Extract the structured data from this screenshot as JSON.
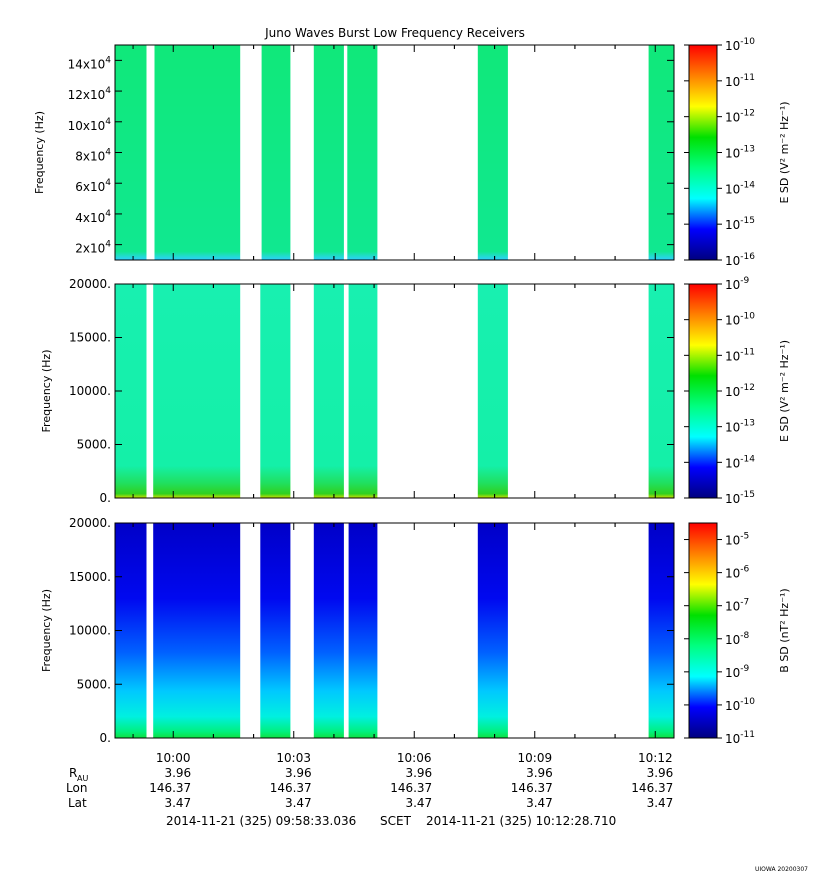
{
  "title": "Juno Waves Burst Low Frequency Receivers",
  "footer": {
    "start_time": "2014-11-21 (325) 09:58:33.036",
    "frame": "SCET",
    "end_time": "2014-11-21 (325) 10:12:28.710",
    "credit": "UIOWA 20200307"
  },
  "ephemeris": {
    "row_labels": [
      "R",
      "Lon",
      "Lat"
    ],
    "r_subscript": "AU",
    "rows": [
      {
        "key": "r",
        "values": [
          "3.96",
          "3.96",
          "3.96",
          "3.96",
          "3.96"
        ]
      },
      {
        "key": "lon",
        "values": [
          "146.37",
          "146.37",
          "146.37",
          "146.37",
          "146.37"
        ]
      },
      {
        "key": "lat",
        "values": [
          "3.47",
          "3.47",
          "3.47",
          "3.47",
          "3.47"
        ]
      }
    ]
  },
  "colors": {
    "colormap": [
      "#000080",
      "#0000ff",
      "#00ffff",
      "#00ff80",
      "#00e000",
      "#ffff00",
      "#ff8000",
      "#ff0000"
    ]
  },
  "chart_data": [
    {
      "type": "heatmap",
      "panel": "E-field high band",
      "ylabel": "Frequency (Hz)",
      "y_range": [
        10000,
        150000
      ],
      "y_ticks": [
        {
          "value": 20000,
          "mant": "2x10",
          "exp": "4"
        },
        {
          "value": 40000,
          "mant": "4x10",
          "exp": "4"
        },
        {
          "value": 60000,
          "mant": "6x10",
          "exp": "4"
        },
        {
          "value": 80000,
          "mant": "8x10",
          "exp": "4"
        },
        {
          "value": 100000,
          "mant": "10x10",
          "exp": "4"
        },
        {
          "value": 120000,
          "mant": "12x10",
          "exp": "4"
        },
        {
          "value": 140000,
          "mant": "14x10",
          "exp": "4"
        }
      ],
      "colorbar_label": "E SD (V² m⁻² Hz⁻¹)",
      "colorbar_range_exp": [
        -16,
        -10
      ],
      "colorbar_ticks": [
        "-16",
        "-15",
        "-14",
        "-13",
        "-12",
        "-11",
        "-10"
      ],
      "bursts": [
        [
          "09:58:33",
          "09:59:20"
        ],
        [
          "09:59:32",
          "10:01:40"
        ],
        [
          "10:02:12",
          "10:02:55"
        ],
        [
          "10:03:30",
          "10:04:15"
        ],
        [
          "10:04:20",
          "10:05:05"
        ],
        [
          "10:07:35",
          "10:08:20"
        ],
        [
          "10:11:50",
          "10:12:28"
        ]
      ]
    },
    {
      "type": "heatmap",
      "panel": "E-field low band",
      "ylabel": "Frequency (Hz)",
      "y_range": [
        0,
        20000
      ],
      "y_ticks": [
        {
          "value": 0,
          "label": "0."
        },
        {
          "value": 5000,
          "label": "5000."
        },
        {
          "value": 10000,
          "label": "10000."
        },
        {
          "value": 15000,
          "label": "15000."
        },
        {
          "value": 20000,
          "label": "20000."
        }
      ],
      "colorbar_label": "E SD (V² m⁻² Hz⁻¹)",
      "colorbar_range_exp": [
        -15,
        -9
      ],
      "colorbar_ticks": [
        "-15",
        "-14",
        "-13",
        "-12",
        "-11",
        "-10",
        "-9"
      ],
      "bursts": [
        [
          "09:58:33",
          "09:59:20"
        ],
        [
          "09:59:30",
          "10:01:40"
        ],
        [
          "10:02:10",
          "10:02:55"
        ],
        [
          "10:03:30",
          "10:04:15"
        ],
        [
          "10:04:22",
          "10:05:05"
        ],
        [
          "10:07:35",
          "10:08:20"
        ],
        [
          "10:11:50",
          "10:12:28"
        ]
      ]
    },
    {
      "type": "heatmap",
      "panel": "B-field",
      "ylabel": "Frequency (Hz)",
      "y_range": [
        0,
        20000
      ],
      "y_ticks": [
        {
          "value": 0,
          "label": "0."
        },
        {
          "value": 5000,
          "label": "5000."
        },
        {
          "value": 10000,
          "label": "10000."
        },
        {
          "value": 15000,
          "label": "15000."
        },
        {
          "value": 20000,
          "label": "20000."
        }
      ],
      "colorbar_label": "B SD (nT² Hz⁻¹)",
      "colorbar_range_exp": [
        -11,
        -4.5
      ],
      "colorbar_ticks": [
        "-11",
        "-10",
        "-9",
        "-8",
        "-7",
        "-6",
        "-5"
      ],
      "bursts": [
        [
          "09:58:33",
          "09:59:20"
        ],
        [
          "09:59:30",
          "10:01:40"
        ],
        [
          "10:02:10",
          "10:02:55"
        ],
        [
          "10:03:30",
          "10:04:15"
        ],
        [
          "10:04:22",
          "10:05:05"
        ],
        [
          "10:07:35",
          "10:08:20"
        ],
        [
          "10:11:50",
          "10:12:28"
        ]
      ]
    }
  ],
  "x_axis": {
    "range": [
      "09:58:33",
      "10:12:28"
    ],
    "ticks": [
      {
        "time": "10:00",
        "label": "10:00"
      },
      {
        "time": "10:03",
        "label": "10:03"
      },
      {
        "time": "10:06",
        "label": "10:06"
      },
      {
        "time": "10:09",
        "label": "10:09"
      },
      {
        "time": "10:12",
        "label": "10:12"
      }
    ]
  }
}
